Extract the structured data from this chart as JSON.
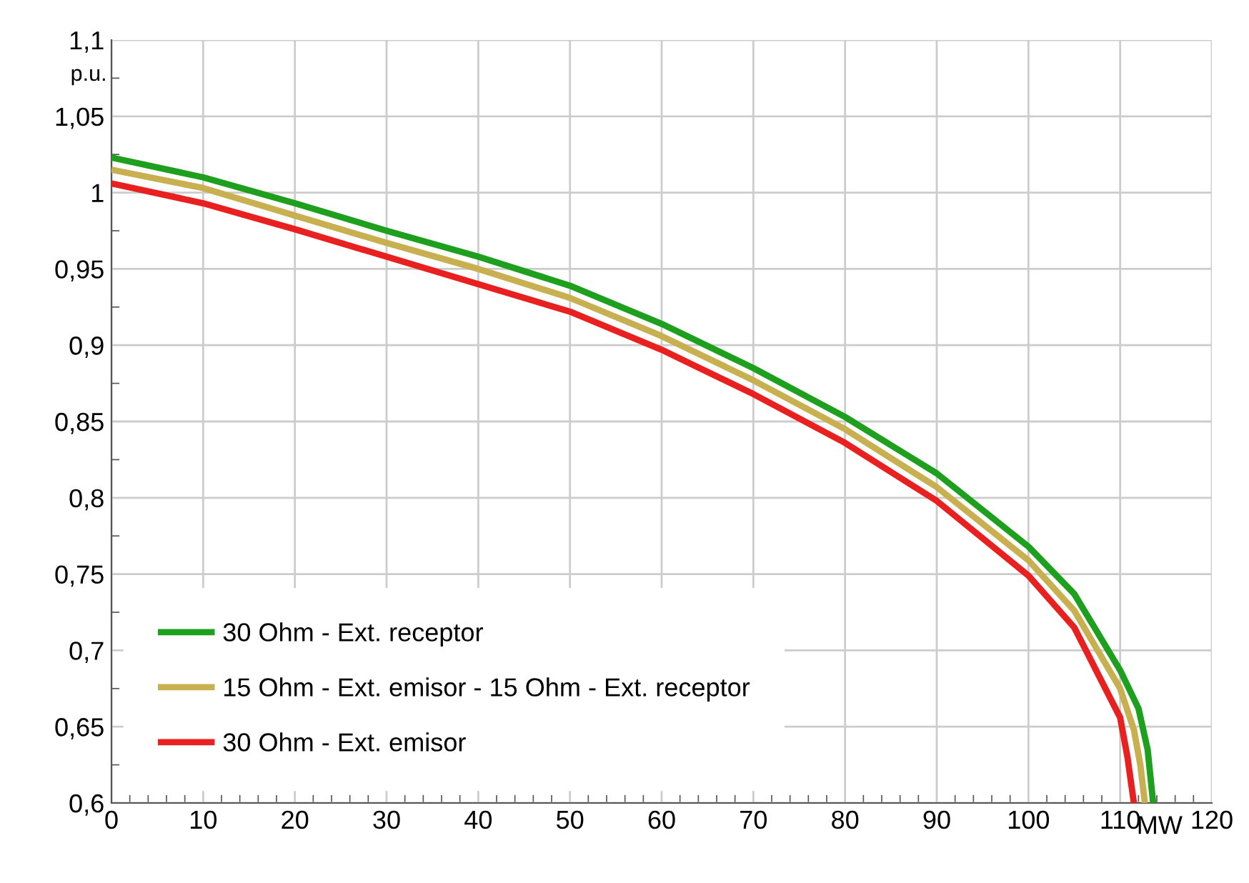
{
  "chart_data": {
    "type": "line",
    "xlabel": "MW",
    "ylabel": "p.u.",
    "xlim": [
      0,
      120
    ],
    "ylim": [
      0.6,
      1.1
    ],
    "xticks": [
      0,
      10,
      20,
      30,
      40,
      50,
      60,
      70,
      80,
      90,
      100,
      110,
      120
    ],
    "yticks": [
      {
        "value": 0.6,
        "label": "0,6"
      },
      {
        "value": 0.65,
        "label": "0,65"
      },
      {
        "value": 0.7,
        "label": "0,7"
      },
      {
        "value": 0.75,
        "label": "0,75"
      },
      {
        "value": 0.8,
        "label": "0,8"
      },
      {
        "value": 0.85,
        "label": "0,85"
      },
      {
        "value": 0.9,
        "label": "0,9"
      },
      {
        "value": 0.95,
        "label": "0,95"
      },
      {
        "value": 1,
        "label": "1"
      },
      {
        "value": 1.05,
        "label": "1,05"
      },
      {
        "value": 1.1,
        "label": "1,1"
      }
    ],
    "grid": true,
    "legend": "bottom left",
    "marker": "none",
    "line_style": "solid",
    "series": [
      {
        "name": "30 Ohm - Ext. receptor",
        "color": "#1ea01e",
        "x": [
          0,
          10,
          20,
          30,
          40,
          50,
          60,
          70,
          80,
          90,
          100,
          105,
          110,
          112,
          113,
          113.6
        ],
        "values": [
          1.023,
          1.01,
          0.993,
          0.975,
          0.958,
          0.939,
          0.914,
          0.885,
          0.853,
          0.816,
          0.768,
          0.737,
          0.687,
          0.662,
          0.635,
          0.6
        ]
      },
      {
        "name": "15 Ohm - Ext. emisor - 15 Ohm - Ext. receptor",
        "color": "#c8b050",
        "x": [
          0,
          10,
          20,
          30,
          40,
          50,
          60,
          70,
          80,
          90,
          100,
          105,
          110,
          111.5,
          112.2,
          112.7
        ],
        "values": [
          1.015,
          1.003,
          0.985,
          0.967,
          0.95,
          0.931,
          0.906,
          0.877,
          0.845,
          0.807,
          0.759,
          0.726,
          0.675,
          0.648,
          0.625,
          0.6
        ]
      },
      {
        "name": "30 Ohm - Ext. emisor",
        "color": "#e82020",
        "x": [
          0,
          10,
          20,
          30,
          40,
          50,
          60,
          70,
          80,
          90,
          100,
          105,
          110,
          110.8,
          111.5
        ],
        "values": [
          1.006,
          0.993,
          0.976,
          0.958,
          0.94,
          0.922,
          0.897,
          0.868,
          0.836,
          0.798,
          0.749,
          0.715,
          0.656,
          0.63,
          0.6
        ]
      }
    ]
  }
}
